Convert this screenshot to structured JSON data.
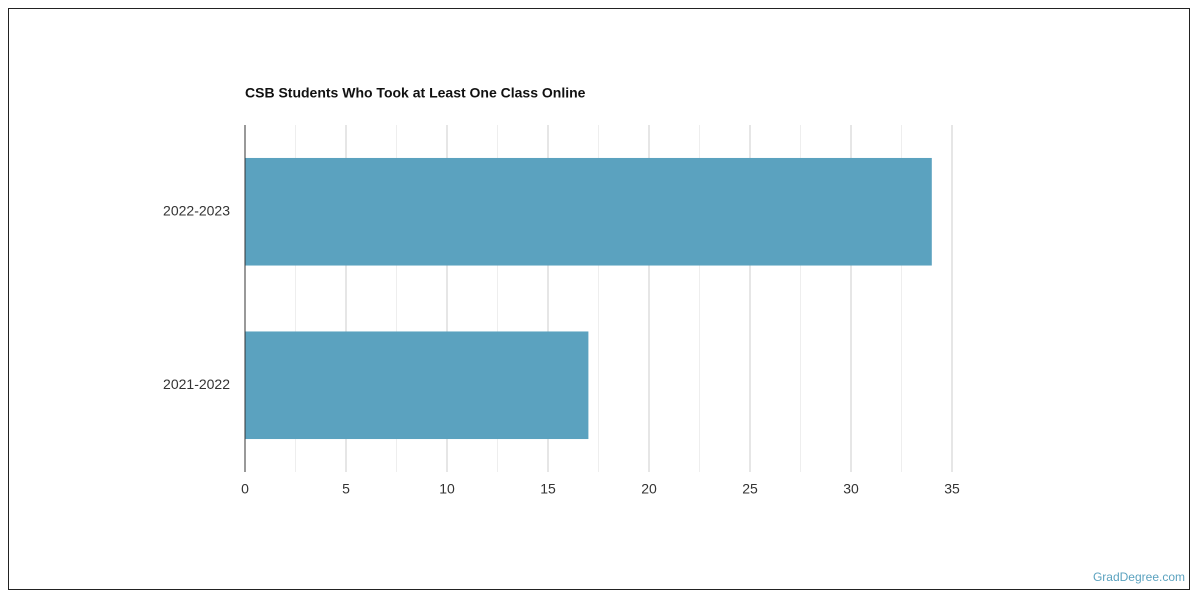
{
  "chart_data": {
    "type": "bar",
    "orientation": "horizontal",
    "title": "CSB Students Who Took at Least One Class Online",
    "categories": [
      "2022-2023",
      "2021-2022"
    ],
    "values": [
      34,
      17
    ],
    "color": "#5ba2bf",
    "xlim": [
      0,
      35
    ],
    "xticks": [
      0,
      5,
      10,
      15,
      20,
      25,
      30,
      35
    ],
    "grid": true
  },
  "footer": {
    "source": "GradDegree.com"
  }
}
